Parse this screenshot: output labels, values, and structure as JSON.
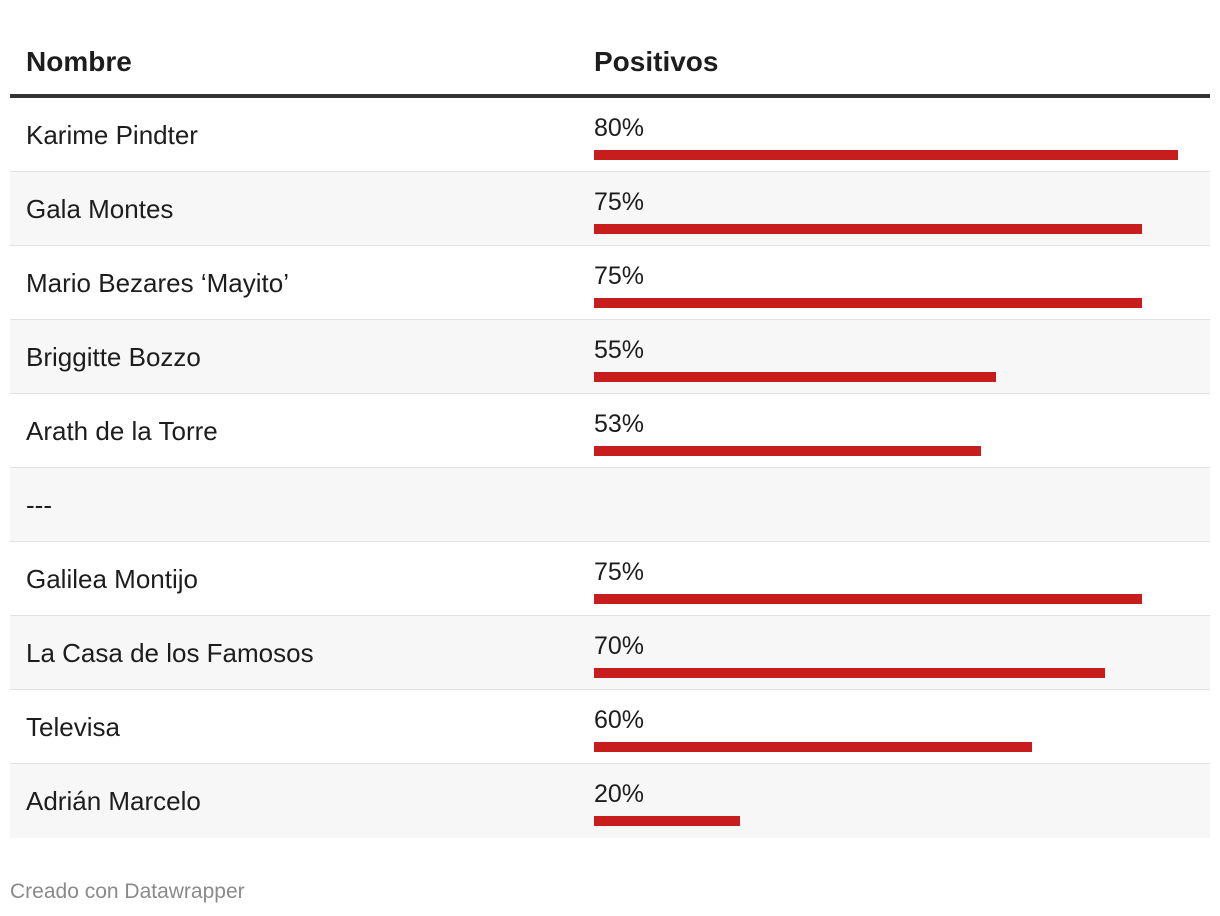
{
  "chart_data": {
    "type": "table",
    "columns": [
      "Nombre",
      "Positivos"
    ],
    "unit": "%",
    "max_value": 100,
    "rows": [
      {
        "name": "Karime Pindter",
        "value": 80,
        "label": "80%"
      },
      {
        "name": "Gala Montes",
        "value": 75,
        "label": "75%"
      },
      {
        "name": "Mario Bezares ‘Mayito’",
        "value": 75,
        "label": "75%"
      },
      {
        "name": "Briggitte Bozzo",
        "value": 55,
        "label": "55%"
      },
      {
        "name": "Arath de la Torre",
        "value": 53,
        "label": "53%"
      },
      {
        "name": "---",
        "value": null,
        "label": ""
      },
      {
        "name": "Galilea Montijo",
        "value": 75,
        "label": "75%"
      },
      {
        "name": "La Casa de los Famosos",
        "value": 70,
        "label": "70%"
      },
      {
        "name": "Televisa",
        "value": 60,
        "label": "60%"
      },
      {
        "name": "Adrián Marcelo",
        "value": 20,
        "label": "20%"
      }
    ],
    "bar_color": "#c71e1d"
  },
  "footer": {
    "credit": "Creado con Datawrapper"
  }
}
